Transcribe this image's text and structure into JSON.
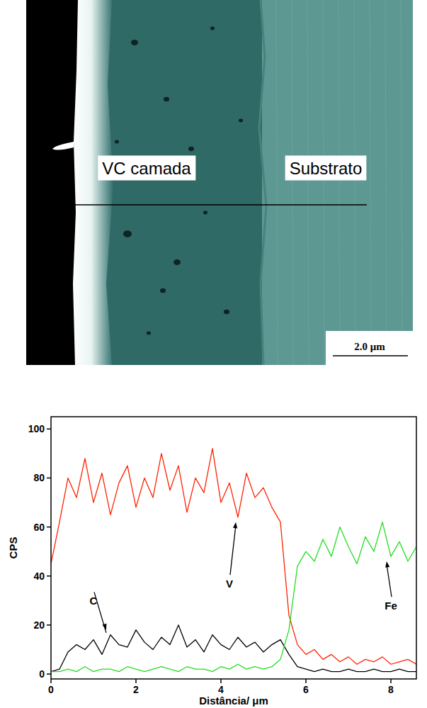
{
  "image": {
    "labels": [
      "VC camada",
      "Substrato"
    ],
    "scale_bar": "2.0 μm"
  },
  "chart_data": {
    "type": "line",
    "x_label": "Distância/ μm",
    "y_label": "CPS",
    "x": [
      0,
      0.2,
      0.4,
      0.6,
      0.8,
      1.0,
      1.2,
      1.4,
      1.6,
      1.8,
      2.0,
      2.2,
      2.4,
      2.6,
      2.8,
      3.0,
      3.2,
      3.4,
      3.6,
      3.8,
      4.0,
      4.2,
      4.4,
      4.6,
      4.8,
      5.0,
      5.2,
      5.4,
      5.6,
      5.8,
      6.0,
      6.2,
      6.4,
      6.6,
      6.8,
      7.0,
      7.2,
      7.4,
      7.6,
      7.8,
      8.0,
      8.2,
      8.4,
      8.6
    ],
    "series": [
      {
        "name": "V",
        "color": "#ff2200",
        "values": [
          45,
          62,
          80,
          72,
          88,
          70,
          82,
          65,
          78,
          85,
          68,
          80,
          72,
          90,
          75,
          85,
          66,
          80,
          74,
          92,
          70,
          78,
          64,
          82,
          72,
          76,
          68,
          62,
          24,
          12,
          8,
          10,
          6,
          8,
          5,
          7,
          4,
          6,
          5,
          7,
          4,
          5,
          6,
          4
        ]
      },
      {
        "name": "C",
        "color": "#000000",
        "values": [
          1,
          2,
          9,
          12,
          10,
          14,
          8,
          16,
          12,
          11,
          18,
          13,
          10,
          15,
          12,
          20,
          11,
          14,
          9,
          16,
          12,
          10,
          15,
          11,
          13,
          9,
          12,
          14,
          8,
          3,
          2,
          1,
          2,
          1,
          1,
          2,
          1,
          1,
          2,
          1,
          1,
          2,
          1,
          1
        ]
      },
      {
        "name": "Fe",
        "color": "#22dd22",
        "values": [
          1,
          1,
          2,
          1,
          3,
          1,
          2,
          2,
          1,
          3,
          2,
          1,
          2,
          3,
          2,
          1,
          3,
          2,
          2,
          1,
          3,
          2,
          4,
          2,
          3,
          2,
          3,
          6,
          18,
          44,
          50,
          46,
          55,
          48,
          60,
          52,
          45,
          56,
          50,
          62,
          48,
          54,
          46,
          52
        ]
      }
    ],
    "xlim": [
      0,
      8.6
    ],
    "ylim": [
      -2,
      105
    ],
    "xticks": [
      0,
      2,
      4,
      6,
      8
    ],
    "yticks": [
      0,
      20,
      40,
      60,
      80,
      100
    ]
  }
}
